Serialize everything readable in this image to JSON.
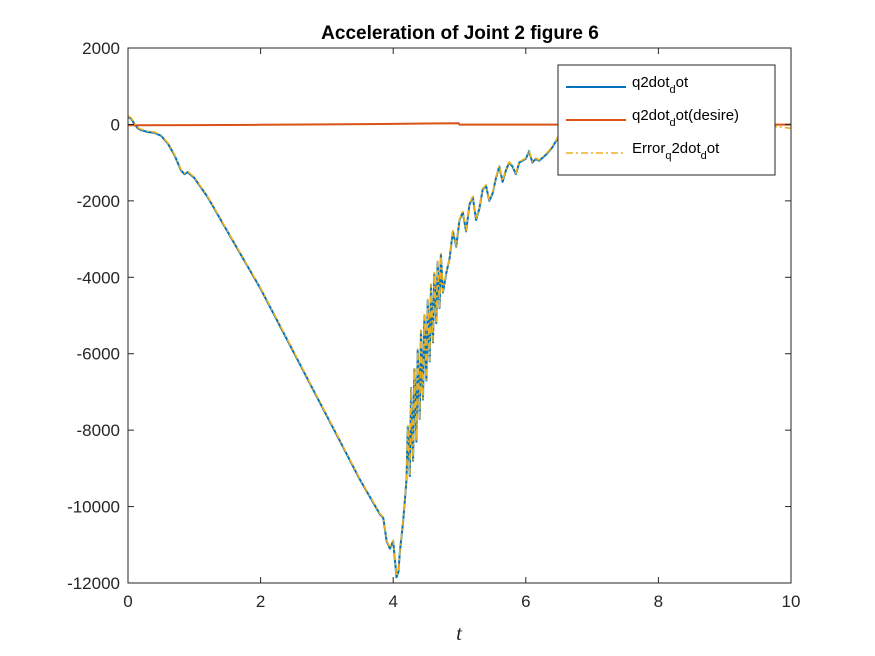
{
  "chart_data": {
    "type": "line",
    "title": "Acceleration of Joint 2  figure 6",
    "xlabel": "t",
    "ylabel": "",
    "xlim": [
      0,
      10
    ],
    "ylim": [
      -12000,
      2000
    ],
    "xticks": [
      0,
      2,
      4,
      6,
      8,
      10
    ],
    "xtick_labels": [
      "0",
      "2",
      "4",
      "6",
      "8",
      "10"
    ],
    "yticks": [
      2000,
      0,
      -2000,
      -4000,
      -6000,
      -8000,
      -10000,
      -12000
    ],
    "ytick_labels": [
      "2000",
      "0",
      "-2000",
      "-4000",
      "-6000",
      "-8000",
      "-10000",
      "-12000"
    ],
    "grid": false,
    "legend_location": "top-right",
    "series": [
      {
        "name": "q2dot_dot",
        "legend_main": "q2dot",
        "legend_sub": "d",
        "legend_tail": "ot",
        "color": "#0072BD",
        "style": "solid",
        "x": [
          0,
          0.05,
          0.1,
          0.15,
          0.2,
          0.3,
          0.4,
          0.5,
          0.6,
          0.7,
          0.8,
          0.85,
          0.9,
          1.0,
          1.2,
          1.5,
          1.8,
          2.0,
          2.3,
          2.6,
          2.9,
          3.2,
          3.5,
          3.7,
          3.8,
          3.85,
          3.9,
          3.95,
          4.0,
          4.05,
          4.08,
          4.1,
          4.15,
          4.2,
          4.22,
          4.25,
          4.27,
          4.3,
          4.32,
          4.35,
          4.37,
          4.4,
          4.42,
          4.45,
          4.47,
          4.5,
          4.52,
          4.55,
          4.57,
          4.6,
          4.62,
          4.65,
          4.67,
          4.7,
          4.72,
          4.75,
          4.8,
          4.85,
          4.9,
          4.95,
          5.0,
          5.05,
          5.1,
          5.15,
          5.2,
          5.25,
          5.3,
          5.35,
          5.4,
          5.45,
          5.5,
          5.55,
          5.6,
          5.65,
          5.7,
          5.75,
          5.8,
          5.85,
          5.9,
          6.0,
          6.05,
          6.1,
          6.15,
          6.2,
          6.3,
          6.4,
          6.5,
          6.6
        ],
        "values": [
          200,
          150,
          0,
          -100,
          -150,
          -200,
          -220,
          -300,
          -500,
          -800,
          -1200,
          -1300,
          -1250,
          -1400,
          -1900,
          -2800,
          -3700,
          -4300,
          -5300,
          -6300,
          -7300,
          -8300,
          -9300,
          -9900,
          -10200,
          -10300,
          -10900,
          -11100,
          -10900,
          -11850,
          -11700,
          -11200,
          -10400,
          -9300,
          -7900,
          -9200,
          -6900,
          -8800,
          -6400,
          -8300,
          -5900,
          -7700,
          -5400,
          -7200,
          -5000,
          -6700,
          -4600,
          -6200,
          -4200,
          -5700,
          -3900,
          -5200,
          -3600,
          -4800,
          -3400,
          -4400,
          -3900,
          -3500,
          -2800,
          -3200,
          -2500,
          -2300,
          -2800,
          -2100,
          -1900,
          -2500,
          -2200,
          -1700,
          -1600,
          -2000,
          -1800,
          -1400,
          -1100,
          -1500,
          -1200,
          -1000,
          -1100,
          -1300,
          -1000,
          -900,
          -700,
          -1000,
          -900,
          -950,
          -800,
          -600,
          -300,
          0
        ]
      },
      {
        "name": "q2dot_dot(desire)",
        "legend_main": "q2dot",
        "legend_sub": "d",
        "legend_tail": "ot(desire)",
        "color": "#D95319",
        "style": "solid",
        "x": [
          0,
          1,
          2,
          3,
          4,
          4.5,
          4.99,
          5.0,
          6,
          7,
          8,
          9,
          10
        ],
        "values": [
          -20,
          -18,
          -10,
          0,
          15,
          25,
          30,
          -5,
          -5,
          -5,
          -5,
          -5,
          -5
        ]
      },
      {
        "name": "Error_q2dot_dot",
        "legend_main": "Error",
        "legend_sub": "q",
        "legend_tail": "2dot",
        "legend_sub2": "d",
        "legend_tail2": "ot",
        "color": "#EDB120",
        "style": "dashdot",
        "x": [
          0,
          0.05,
          0.1,
          0.15,
          0.2,
          0.3,
          0.4,
          0.5,
          0.6,
          0.7,
          0.8,
          0.85,
          0.9,
          1.0,
          1.2,
          1.5,
          1.8,
          2.0,
          2.3,
          2.6,
          2.9,
          3.2,
          3.5,
          3.7,
          3.8,
          3.85,
          3.9,
          3.95,
          4.0,
          4.05,
          4.08,
          4.1,
          4.15,
          4.2,
          4.22,
          4.25,
          4.27,
          4.3,
          4.32,
          4.35,
          4.37,
          4.4,
          4.42,
          4.45,
          4.47,
          4.5,
          4.52,
          4.55,
          4.57,
          4.6,
          4.62,
          4.65,
          4.67,
          4.7,
          4.72,
          4.75,
          4.8,
          4.85,
          4.9,
          4.95,
          5.0,
          5.05,
          5.1,
          5.15,
          5.2,
          5.25,
          5.3,
          5.35,
          5.4,
          5.45,
          5.5,
          5.55,
          5.6,
          5.65,
          5.7,
          5.75,
          5.8,
          5.85,
          5.9,
          6.0,
          6.05,
          6.1,
          6.15,
          6.2,
          6.3,
          6.4,
          6.5,
          6.6,
          9.8,
          10
        ],
        "values": [
          220,
          170,
          20,
          -80,
          -130,
          -180,
          -200,
          -280,
          -480,
          -780,
          -1180,
          -1280,
          -1230,
          -1380,
          -1880,
          -2780,
          -3680,
          -4280,
          -5280,
          -6280,
          -7280,
          -8280,
          -9280,
          -9880,
          -10180,
          -10280,
          -10880,
          -11080,
          -10880,
          -11830,
          -11680,
          -11180,
          -10380,
          -9280,
          -7880,
          -9180,
          -6880,
          -8780,
          -6380,
          -8280,
          -5880,
          -7680,
          -5380,
          -7180,
          -4980,
          -6680,
          -4580,
          -6180,
          -4180,
          -5680,
          -3880,
          -5180,
          -3580,
          -4780,
          -3380,
          -4380,
          -3880,
          -3480,
          -2780,
          -3180,
          -2480,
          -2280,
          -2780,
          -2080,
          -1880,
          -2480,
          -2180,
          -1680,
          -1580,
          -1980,
          -1780,
          -1380,
          -1080,
          -1480,
          -1180,
          -980,
          -1080,
          -1280,
          -980,
          -880,
          -680,
          -980,
          -880,
          -930,
          -780,
          -580,
          -280,
          20,
          -60,
          -100
        ]
      }
    ]
  }
}
